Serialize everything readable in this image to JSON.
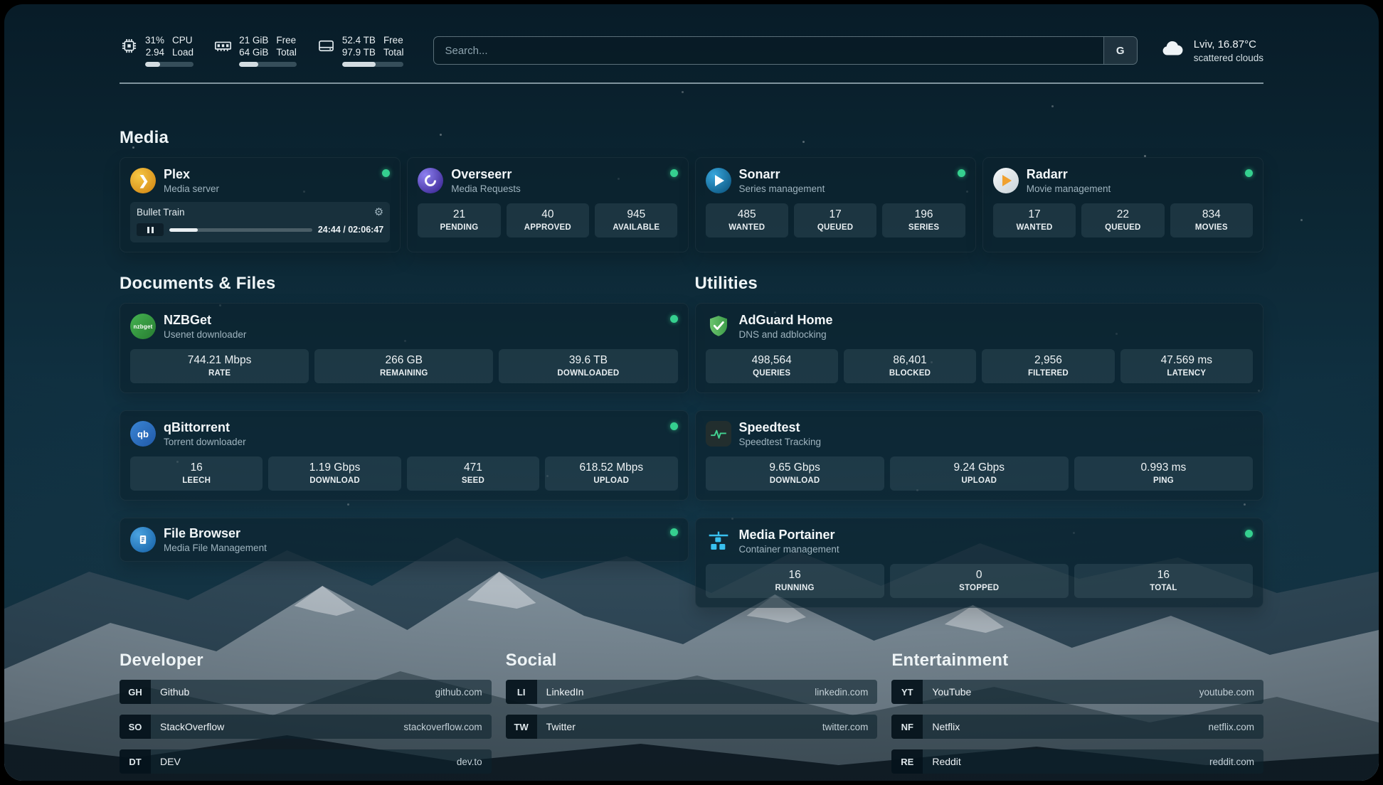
{
  "topbar": {
    "cpu": {
      "value1": "31%",
      "value2": "2.94",
      "label1": "CPU",
      "label2": "Load",
      "progress_pct": 31
    },
    "memory": {
      "value1": "21 GiB",
      "value2": "64 GiB",
      "label1": "Free",
      "label2": "Total",
      "progress_pct": 33
    },
    "disk": {
      "value1": "52.4 TB",
      "value2": "97.9 TB",
      "label1": "Free",
      "label2": "Total",
      "progress_pct": 54
    },
    "search": {
      "placeholder": "Search...",
      "provider_label": "G"
    },
    "weather": {
      "location": "Lviv, 16.87°C",
      "condition": "scattered clouds"
    }
  },
  "sections": {
    "media": {
      "title": "Media",
      "cards": [
        {
          "title": "Plex",
          "subtitle": "Media server",
          "online": true,
          "now_playing": {
            "title": "Bullet Train",
            "time": "24:44 / 02:06:47",
            "progress_pct": 20
          }
        },
        {
          "title": "Overseerr",
          "subtitle": "Media Requests",
          "online": true,
          "stats": [
            {
              "value": "21",
              "label": "PENDING"
            },
            {
              "value": "40",
              "label": "APPROVED"
            },
            {
              "value": "945",
              "label": "AVAILABLE"
            }
          ]
        },
        {
          "title": "Sonarr",
          "subtitle": "Series management",
          "online": true,
          "stats": [
            {
              "value": "485",
              "label": "WANTED"
            },
            {
              "value": "17",
              "label": "QUEUED"
            },
            {
              "value": "196",
              "label": "SERIES"
            }
          ]
        },
        {
          "title": "Radarr",
          "subtitle": "Movie management",
          "online": true,
          "stats": [
            {
              "value": "17",
              "label": "WANTED"
            },
            {
              "value": "22",
              "label": "QUEUED"
            },
            {
              "value": "834",
              "label": "MOVIES"
            }
          ]
        }
      ]
    },
    "documents": {
      "title": "Documents & Files",
      "cards": [
        {
          "title": "NZBGet",
          "subtitle": "Usenet downloader",
          "online": true,
          "icon_text": "nzbget",
          "stats": [
            {
              "value": "744.21 Mbps",
              "label": "RATE"
            },
            {
              "value": "266 GB",
              "label": "REMAINING"
            },
            {
              "value": "39.6 TB",
              "label": "DOWNLOADED"
            }
          ]
        },
        {
          "title": "qBittorrent",
          "subtitle": "Torrent downloader",
          "online": true,
          "icon_text": "qb",
          "stats": [
            {
              "value": "16",
              "label": "LEECH"
            },
            {
              "value": "1.19 Gbps",
              "label": "DOWNLOAD"
            },
            {
              "value": "471",
              "label": "SEED"
            },
            {
              "value": "618.52 Mbps",
              "label": "UPLOAD"
            }
          ]
        },
        {
          "title": "File Browser",
          "subtitle": "Media File Management",
          "online": true
        }
      ]
    },
    "utilities": {
      "title": "Utilities",
      "cards": [
        {
          "title": "AdGuard Home",
          "subtitle": "DNS and adblocking",
          "stats": [
            {
              "value": "498,564",
              "label": "QUERIES"
            },
            {
              "value": "86,401",
              "label": "BLOCKED"
            },
            {
              "value": "2,956",
              "label": "FILTERED"
            },
            {
              "value": "47.569 ms",
              "label": "LATENCY"
            }
          ]
        },
        {
          "title": "Speedtest",
          "subtitle": "Speedtest Tracking",
          "stats": [
            {
              "value": "9.65 Gbps",
              "label": "DOWNLOAD"
            },
            {
              "value": "9.24 Gbps",
              "label": "UPLOAD"
            },
            {
              "value": "0.993 ms",
              "label": "PING"
            }
          ]
        },
        {
          "title": "Media Portainer",
          "subtitle": "Container management",
          "online": true,
          "stats": [
            {
              "value": "16",
              "label": "RUNNING"
            },
            {
              "value": "0",
              "label": "STOPPED"
            },
            {
              "value": "16",
              "label": "TOTAL"
            }
          ]
        }
      ]
    },
    "bookmarks": [
      {
        "title": "Developer",
        "links": [
          {
            "abbr": "GH",
            "name": "Github",
            "url": "github.com"
          },
          {
            "abbr": "SO",
            "name": "StackOverflow",
            "url": "stackoverflow.com"
          },
          {
            "abbr": "DT",
            "name": "DEV",
            "url": "dev.to"
          }
        ]
      },
      {
        "title": "Social",
        "links": [
          {
            "abbr": "LI",
            "name": "LinkedIn",
            "url": "linkedin.com"
          },
          {
            "abbr": "TW",
            "name": "Twitter",
            "url": "twitter.com"
          }
        ]
      },
      {
        "title": "Entertainment",
        "links": [
          {
            "abbr": "YT",
            "name": "YouTube",
            "url": "youtube.com"
          },
          {
            "abbr": "NF",
            "name": "Netflix",
            "url": "netflix.com"
          },
          {
            "abbr": "RE",
            "name": "Reddit",
            "url": "reddit.com"
          }
        ]
      }
    ]
  },
  "colors": {
    "online_dot": "#35d08f",
    "accent_green": "#42d392"
  }
}
